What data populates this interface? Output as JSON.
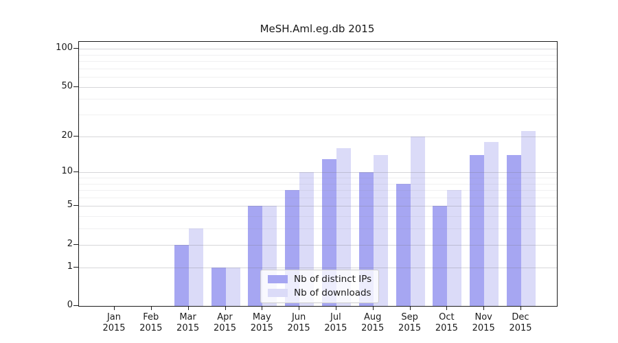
{
  "figure": {
    "title": "MeSH.Aml.eg.db 2015"
  },
  "chart_data": {
    "type": "bar",
    "title": "MeSH.Aml.eg.db 2015",
    "categories": [
      "Jan 2015",
      "Feb 2015",
      "Mar 2015",
      "Apr 2015",
      "May 2015",
      "Jun 2015",
      "Jul 2015",
      "Aug 2015",
      "Sep 2015",
      "Oct 2015",
      "Nov 2015",
      "Dec 2015"
    ],
    "series": [
      {
        "name": "Nb of distinct IPs",
        "color": "#a6a6f2",
        "values": [
          0,
          0,
          2,
          1,
          5,
          7,
          13,
          10,
          8,
          5,
          14,
          14
        ]
      },
      {
        "name": "Nb of downloads",
        "color": "#dbdbf8",
        "values": [
          0,
          0,
          3,
          1,
          5,
          10,
          16,
          14,
          20,
          7,
          18,
          22
        ]
      }
    ],
    "y_scale": "log1p",
    "ylim": [
      0,
      100
    ],
    "y_tick_labels": [
      0,
      1,
      2,
      5,
      10,
      20,
      50,
      100
    ],
    "y_minor_gridlines": [
      3,
      4,
      6,
      7,
      8,
      9,
      30,
      40,
      60,
      70,
      80,
      90
    ],
    "grid": true,
    "legend_position": "inside-bottom-center",
    "xlabel": "",
    "ylabel": ""
  }
}
